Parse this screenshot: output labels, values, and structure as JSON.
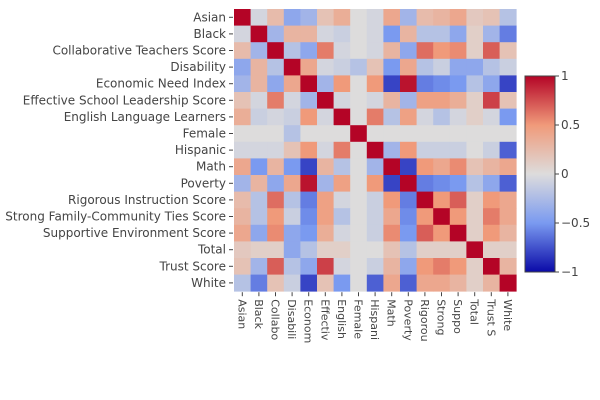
{
  "chart_data": {
    "type": "heatmap",
    "title": "",
    "labels": [
      "Asian",
      "Black",
      "Collaborative Teachers Score",
      "Disability",
      "Economic Need Index",
      "Effective School Leadership Score",
      "English Language Learners",
      "Female",
      "Hispanic",
      "Math",
      "Poverty",
      "Rigorous Instruction Score",
      "Strong Family-Community Ties Score",
      "Supportive Environment Score",
      "Total",
      "Trust Score",
      "White"
    ],
    "x_tick_labels": [
      "Asian",
      "Black",
      "Collabo",
      "Disabili",
      "Econom",
      "Effectiv",
      "English",
      "Female",
      "Hispani",
      "Math",
      "Poverty",
      "Rigorou",
      "Strong",
      "Suppo",
      "Total",
      "Trust S",
      "White"
    ],
    "values": [
      [
        1.0,
        -0.05,
        0.25,
        -0.4,
        -0.3,
        0.2,
        0.35,
        0.0,
        -0.05,
        0.4,
        -0.3,
        0.25,
        0.3,
        0.4,
        0.15,
        0.2,
        -0.2
      ],
      [
        -0.05,
        1.0,
        -0.3,
        0.3,
        0.3,
        -0.05,
        -0.1,
        0.0,
        -0.05,
        -0.5,
        0.3,
        -0.2,
        -0.2,
        -0.4,
        0.1,
        -0.3,
        -0.6
      ],
      [
        0.25,
        -0.3,
        1.0,
        -0.2,
        -0.4,
        0.6,
        -0.05,
        0.0,
        -0.05,
        0.3,
        -0.4,
        0.65,
        0.5,
        0.55,
        0.1,
        0.7,
        0.2
      ],
      [
        -0.4,
        0.3,
        -0.2,
        1.0,
        0.4,
        -0.05,
        -0.1,
        -0.2,
        0.2,
        -0.5,
        0.4,
        -0.2,
        -0.1,
        -0.4,
        -0.4,
        -0.2,
        -0.1
      ],
      [
        -0.3,
        0.3,
        -0.4,
        0.4,
        1.0,
        -0.3,
        0.5,
        0.0,
        0.5,
        -0.8,
        0.95,
        -0.6,
        -0.55,
        -0.5,
        -0.2,
        -0.4,
        -0.8
      ],
      [
        0.2,
        -0.05,
        0.6,
        -0.05,
        -0.3,
        1.0,
        -0.05,
        0.0,
        -0.05,
        0.3,
        -0.3,
        0.45,
        0.45,
        0.35,
        0.1,
        0.8,
        0.2
      ],
      [
        0.35,
        -0.1,
        -0.05,
        -0.1,
        0.5,
        -0.05,
        1.0,
        0.0,
        0.6,
        -0.2,
        0.45,
        -0.05,
        -0.2,
        -0.05,
        0.1,
        -0.05,
        -0.5
      ],
      [
        0.0,
        0.0,
        0.0,
        -0.2,
        0.0,
        0.0,
        0.0,
        1.0,
        0.0,
        0.0,
        0.0,
        0.0,
        0.0,
        0.0,
        0.0,
        0.0,
        0.0
      ],
      [
        -0.05,
        -0.05,
        -0.05,
        0.2,
        0.5,
        -0.05,
        0.6,
        0.0,
        1.0,
        -0.3,
        0.5,
        -0.1,
        -0.1,
        -0.1,
        0.0,
        -0.1,
        -0.7
      ],
      [
        0.4,
        -0.5,
        0.3,
        -0.5,
        -0.8,
        0.3,
        -0.2,
        0.0,
        -0.3,
        1.0,
        -0.8,
        0.5,
        0.4,
        0.55,
        0.2,
        0.3,
        0.4
      ],
      [
        -0.3,
        0.3,
        -0.4,
        0.4,
        0.95,
        -0.3,
        0.45,
        0.0,
        0.5,
        -0.8,
        1.0,
        -0.6,
        -0.55,
        -0.5,
        -0.2,
        -0.4,
        -0.7
      ],
      [
        0.25,
        -0.2,
        0.65,
        -0.2,
        -0.6,
        0.45,
        -0.05,
        0.0,
        -0.1,
        0.5,
        -0.6,
        1.0,
        0.5,
        0.7,
        0.1,
        0.5,
        0.4
      ],
      [
        0.3,
        -0.2,
        0.5,
        -0.1,
        -0.55,
        0.45,
        -0.2,
        0.0,
        -0.1,
        0.4,
        -0.55,
        0.5,
        1.0,
        0.5,
        0.1,
        0.6,
        0.4
      ],
      [
        0.4,
        -0.4,
        0.55,
        -0.4,
        -0.5,
        0.35,
        -0.05,
        0.0,
        -0.1,
        0.55,
        -0.5,
        0.7,
        0.5,
        1.0,
        0.1,
        0.5,
        0.3
      ],
      [
        0.15,
        0.1,
        0.1,
        -0.4,
        -0.2,
        0.1,
        0.1,
        0.0,
        0.0,
        0.2,
        -0.2,
        0.1,
        0.1,
        0.1,
        1.0,
        0.1,
        0.1
      ],
      [
        0.2,
        -0.3,
        0.7,
        -0.2,
        -0.4,
        0.8,
        -0.05,
        0.0,
        -0.1,
        0.3,
        -0.4,
        0.5,
        0.6,
        0.5,
        0.1,
        1.0,
        0.3
      ],
      [
        -0.2,
        -0.6,
        0.2,
        -0.1,
        -0.8,
        0.2,
        -0.5,
        0.0,
        -0.7,
        0.4,
        -0.7,
        0.4,
        0.4,
        0.3,
        0.1,
        0.3,
        1.0
      ]
    ],
    "colorscale": [
      "#3b4cc0",
      "#dddcdc",
      "#b40426"
    ],
    "zmin": -1,
    "zmax": 1,
    "colorbar_ticks": [
      1,
      0.5,
      0,
      -0.5,
      -1
    ],
    "colorbar_tick_labels": [
      "1",
      "0.5",
      "0",
      "−0.5",
      "−1"
    ]
  }
}
